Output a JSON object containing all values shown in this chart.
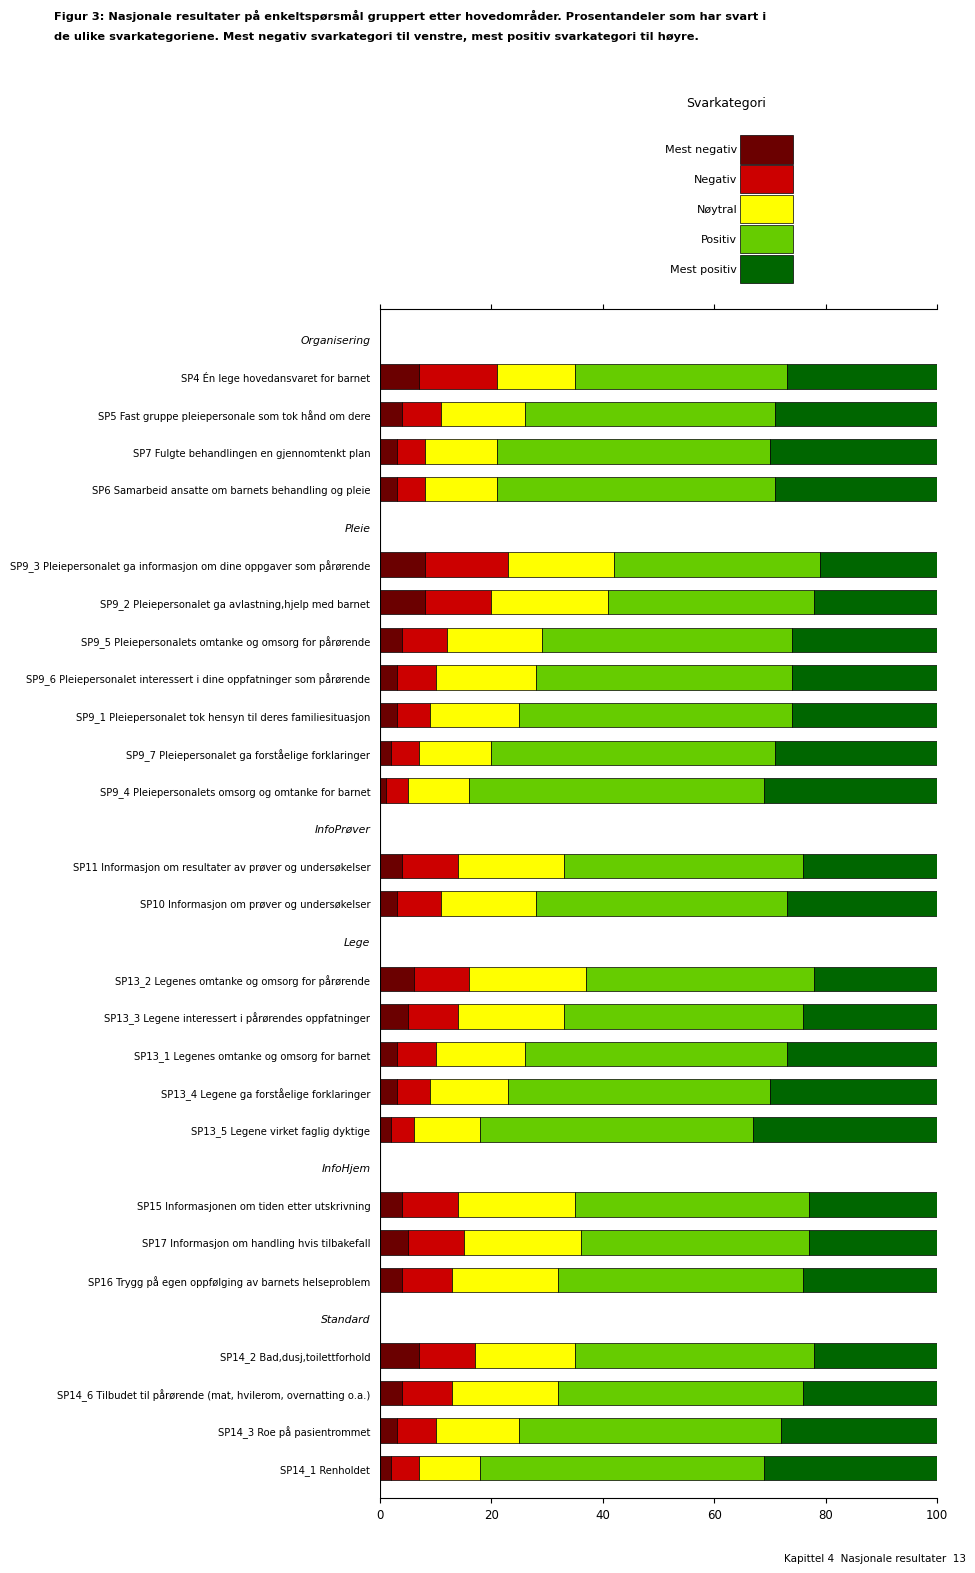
{
  "title_line1": "Figur 3: Nasjonale resultater på enkeltspørsmål gruppert etter hovedområder. Prosentandeler som har svart i",
  "title_line2": "de ulike svarkategoriene. Mest negativ svarkategori til venstre, mest positiv svarkategori til høyre.",
  "legend_title": "Svarkategori",
  "legend_labels": [
    "Mest negativ",
    "Negativ",
    "Nøytral",
    "Positiv",
    "Mest positiv"
  ],
  "colors": [
    "#6B0000",
    "#CC0000",
    "#FFFF00",
    "#66CC00",
    "#006600"
  ],
  "categories": [
    "Organisering",
    "SP4 Én lege hovedansvaret for barnet",
    "SP5 Fast gruppe pleiepersonale som tok hånd om dere",
    "SP7 Fulgte behandlingen en gjennomtenkt plan",
    "SP6 Samarbeid ansatte om barnets behandling og pleie",
    "Pleie",
    "SP9_3 Pleiepersonalet ga informasjon om dine oppgaver som pårørende",
    "SP9_2 Pleiepersonalet ga avlastning,hjelp med barnet",
    "SP9_5 Pleiepersonalets omtanke og omsorg for pårørende",
    "SP9_6 Pleiepersonalet interessert i dine oppfatninger som pårørende",
    "SP9_1 Pleiepersonalet tok hensyn til deres familiesituasjon",
    "SP9_7 Pleiepersonalet ga forståelige forklaringer",
    "SP9_4 Pleiepersonalets omsorg og omtanke for barnet",
    "InfoPrøver",
    "SP11 Informasjon om resultater av prøver og undersøkelser",
    "SP10 Informasjon om prøver og undersøkelser",
    "Lege",
    "SP13_2 Legenes omtanke og omsorg for pårørende",
    "SP13_3 Legene interessert i pårørendes oppfatninger",
    "SP13_1 Legenes omtanke og omsorg for barnet",
    "SP13_4 Legene ga forståelige forklaringer",
    "SP13_5 Legene virket faglig dyktige",
    "InfoHjem",
    "SP15 Informasjonen om tiden etter utskrivning",
    "SP17 Informasjon om handling hvis tilbakefall",
    "SP16 Trygg på egen oppfølging av barnets helseproblem",
    "Standard",
    "SP14_2 Bad,dusj,toilettforhold",
    "SP14_6 Tilbudet til pårørende (mat, hvilerom, overnatting o.a.)",
    "SP14_3 Roe på pasientrommet",
    "SP14_1 Renholdet"
  ],
  "data": [
    [
      0,
      0,
      0,
      0,
      0
    ],
    [
      7,
      14,
      14,
      38,
      27
    ],
    [
      4,
      7,
      15,
      45,
      29
    ],
    [
      3,
      5,
      13,
      49,
      30
    ],
    [
      3,
      5,
      13,
      50,
      29
    ],
    [
      0,
      0,
      0,
      0,
      0
    ],
    [
      8,
      15,
      19,
      37,
      21
    ],
    [
      8,
      12,
      21,
      37,
      22
    ],
    [
      4,
      8,
      17,
      45,
      26
    ],
    [
      3,
      7,
      18,
      46,
      26
    ],
    [
      3,
      6,
      16,
      49,
      26
    ],
    [
      2,
      5,
      13,
      51,
      29
    ],
    [
      1,
      4,
      11,
      53,
      31
    ],
    [
      0,
      0,
      0,
      0,
      0
    ],
    [
      4,
      10,
      19,
      43,
      24
    ],
    [
      3,
      8,
      17,
      45,
      27
    ],
    [
      0,
      0,
      0,
      0,
      0
    ],
    [
      6,
      10,
      21,
      41,
      22
    ],
    [
      5,
      9,
      19,
      43,
      24
    ],
    [
      3,
      7,
      16,
      47,
      27
    ],
    [
      3,
      6,
      14,
      47,
      30
    ],
    [
      2,
      4,
      12,
      49,
      33
    ],
    [
      0,
      0,
      0,
      0,
      0
    ],
    [
      4,
      10,
      21,
      42,
      23
    ],
    [
      5,
      10,
      21,
      41,
      23
    ],
    [
      4,
      9,
      19,
      44,
      24
    ],
    [
      0,
      0,
      0,
      0,
      0
    ],
    [
      7,
      10,
      18,
      43,
      22
    ],
    [
      4,
      9,
      19,
      44,
      24
    ],
    [
      3,
      7,
      15,
      47,
      28
    ],
    [
      2,
      5,
      11,
      51,
      31
    ]
  ],
  "section_labels": [
    "Organisering",
    "Pleie",
    "InfoPrøver",
    "Lege",
    "InfoHjem",
    "Standard"
  ],
  "xlim": [
    0,
    100
  ],
  "background_color": "#ffffff",
  "bar_height": 0.65,
  "footer": "Kapittel 4  Nasjonale resultater  13"
}
